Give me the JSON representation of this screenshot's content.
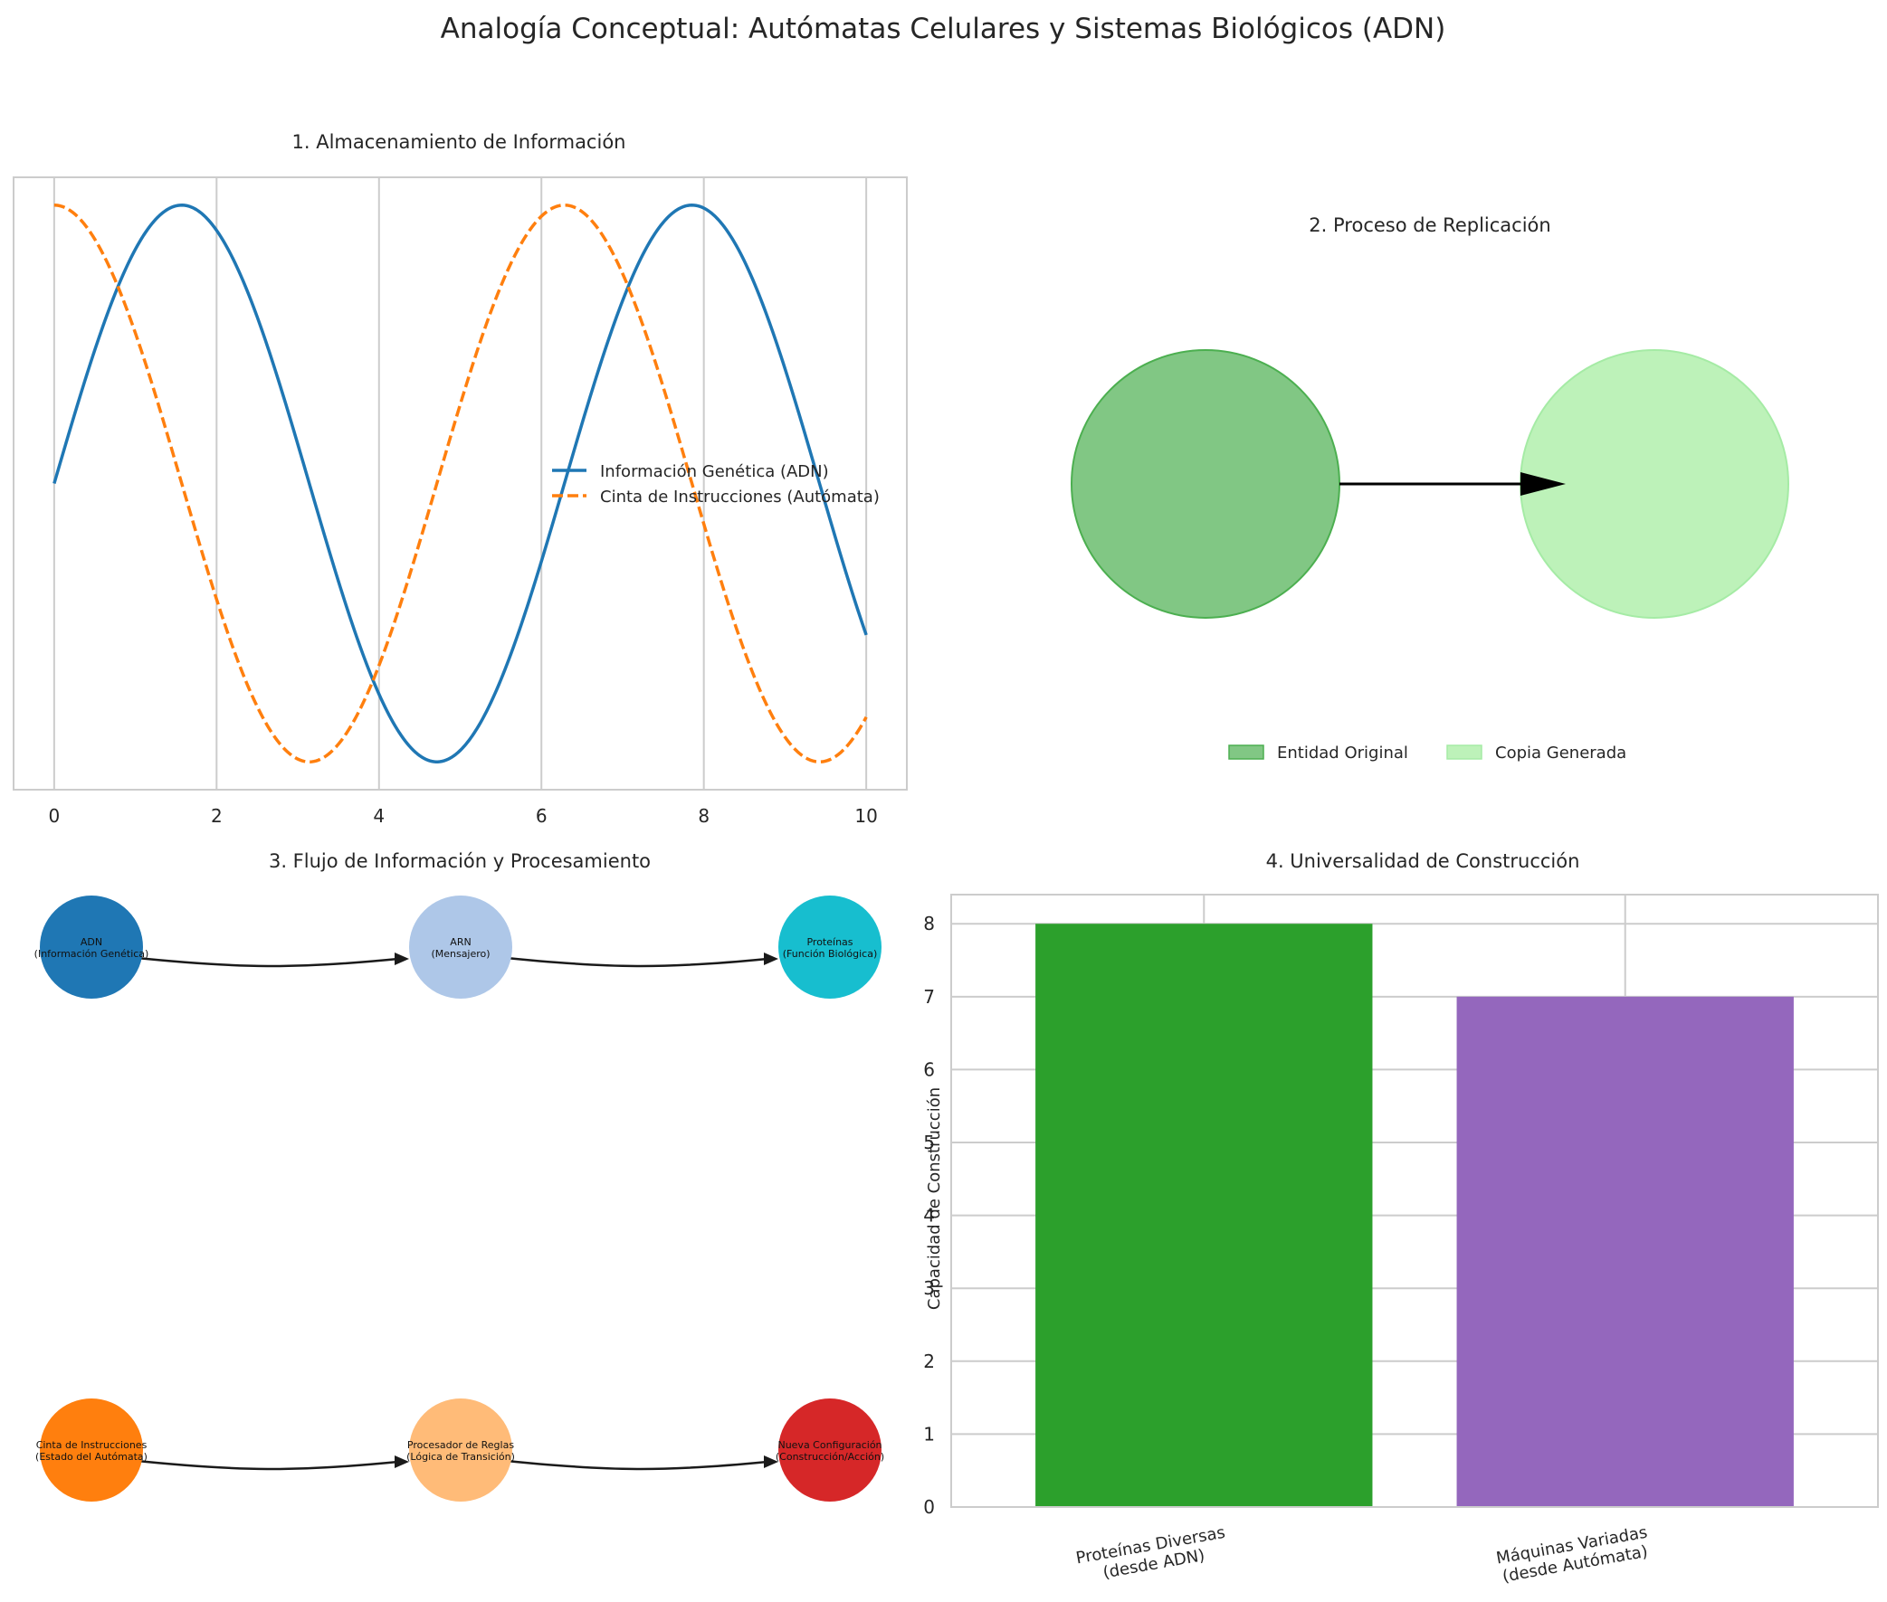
{
  "figure": {
    "title": "Analogía Conceptual: Autómatas Celulares y Sistemas Biológicos (ADN)"
  },
  "chart_data": [
    {
      "type": "line",
      "title": "1. Almacenamiento de Información",
      "xlabel": "",
      "ylabel": "",
      "xlim": [
        -0.5,
        10.5
      ],
      "ylim": [
        -1.1,
        1.1
      ],
      "x_ticks": [
        0,
        2,
        4,
        6,
        8,
        10
      ],
      "y_ticks": [],
      "grid": "vertical",
      "legend_position": "center-right",
      "series": [
        {
          "name": "Información Genética (ADN)",
          "function": "sin",
          "x_range": [
            0,
            10
          ],
          "color": "#1f77b4",
          "style": "solid"
        },
        {
          "name": "Cinta de Instrucciones (Autómata)",
          "function": "cos",
          "x_range": [
            0,
            10
          ],
          "color": "#ff7f0e",
          "style": "dashed"
        }
      ]
    },
    {
      "type": "diagram",
      "title": "2. Proceso de Replicación",
      "legend_position": "bottom-center",
      "entities": [
        {
          "name": "Entidad Original",
          "color": "#4caf50",
          "fill": "#81c784"
        },
        {
          "name": "Copia Generada",
          "color": "#a5eba5",
          "fill": "#bdf2b9"
        }
      ],
      "arrow": {
        "from": "Entidad Original",
        "to": "Copia Generada",
        "color": "#000000"
      }
    },
    {
      "type": "flow",
      "title": "3. Flujo de Información y Procesamiento",
      "rows": [
        {
          "nodes": [
            {
              "label": "ADN\n(Información Genética)",
              "color": "#1f77b4"
            },
            {
              "label": "ARN\n(Mensajero)",
              "color": "#aec7e8"
            },
            {
              "label": "Proteínas\n(Función Biológica)",
              "color": "#17becf"
            }
          ]
        },
        {
          "nodes": [
            {
              "label": "Cinta de Instrucciones\n(Estado del Autómata)",
              "color": "#ff7f0e"
            },
            {
              "label": "Procesador de Reglas\n(Lógica de Transición)",
              "color": "#ffbb78"
            },
            {
              "label": "Nueva Configuración\n(Construcción/Acción)",
              "color": "#d62728"
            }
          ]
        }
      ]
    },
    {
      "type": "bar",
      "title": "4. Universalidad de Construcción",
      "xlabel": "",
      "ylabel": "Capacidad de Construcción",
      "ylim": [
        0,
        8.4
      ],
      "y_ticks": [
        0,
        1,
        2,
        3,
        4,
        5,
        6,
        7,
        8
      ],
      "grid": "both",
      "categories": [
        "Proteínas Diversas\n(desde ADN)",
        "Máquinas Variadas\n(desde Autómata)"
      ],
      "values": [
        8,
        7
      ],
      "colors": [
        "#2ca02c",
        "#9467bd"
      ]
    }
  ]
}
